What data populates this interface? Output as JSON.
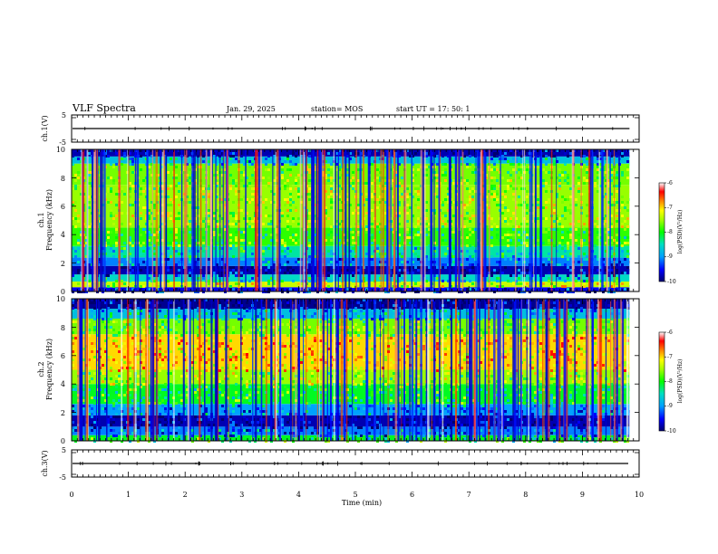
{
  "header": {
    "title": "VLF Spectra",
    "date": "Jan. 29, 2025",
    "station": "station= MOS",
    "start": "start  UT  =   17: 50: 1"
  },
  "chart_data": [
    {
      "type": "line",
      "panel": "ch1-waveform",
      "ylabel": "ch.1(V)",
      "yticks": [
        "5",
        "-5"
      ],
      "ylim": [
        -5,
        5
      ],
      "xlim": [
        0,
        10
      ],
      "end_time_min": 9.83,
      "note_level_v": 0
    },
    {
      "type": "heatmap",
      "panel": "ch1-spectrogram",
      "ylabel": [
        "ch.1",
        "Frequency (kHz)"
      ],
      "yticks": [
        "0",
        "2",
        "4",
        "6",
        "8",
        "10"
      ],
      "ylim": [
        0,
        10
      ],
      "xlim": [
        0,
        10
      ],
      "end_time_min": 9.83,
      "colorbar": {
        "label": "log(PSD)(V²/Hz)",
        "ticks": [
          "-6",
          "-7",
          "-8",
          "-9",
          "-10"
        ],
        "range": [
          -10,
          -6
        ]
      },
      "background_bands_khz": [
        {
          "from": 0,
          "to": 0.3,
          "level": -9.6
        },
        {
          "from": 0.3,
          "to": 0.7,
          "level": -7.6
        },
        {
          "from": 0.7,
          "to": 1.2,
          "level": -8.7
        },
        {
          "from": 1.2,
          "to": 1.8,
          "level": -9.8
        },
        {
          "from": 1.8,
          "to": 2.4,
          "level": -9.2
        },
        {
          "from": 2.4,
          "to": 3.2,
          "level": -8.6
        },
        {
          "from": 3.2,
          "to": 4.5,
          "level": -8.1
        },
        {
          "from": 4.5,
          "to": 7.5,
          "level": -7.8
        },
        {
          "from": 7.5,
          "to": 9.0,
          "level": -7.9
        },
        {
          "from": 9.0,
          "to": 9.5,
          "level": -8.9
        },
        {
          "from": 9.5,
          "to": 10.0,
          "level": -9.8
        }
      ]
    },
    {
      "type": "heatmap",
      "panel": "ch2-spectrogram",
      "ylabel": [
        "ch.2",
        "Frequency (kHz)"
      ],
      "yticks": [
        "0",
        "2",
        "4",
        "6",
        "8",
        "10"
      ],
      "ylim": [
        0,
        10
      ],
      "xlim": [
        0,
        10
      ],
      "end_time_min": 9.83,
      "colorbar": {
        "label": "log(PSD)(V²/Hz)",
        "ticks": [
          "-6",
          "-7",
          "-8",
          "-9",
          "-10"
        ],
        "range": [
          -10,
          -6
        ]
      },
      "background_bands_khz": [
        {
          "from": 0,
          "to": 0.4,
          "level": -8.3
        },
        {
          "from": 0.4,
          "to": 1.0,
          "level": -9.2
        },
        {
          "from": 1.0,
          "to": 1.8,
          "level": -9.8
        },
        {
          "from": 1.8,
          "to": 2.6,
          "level": -9.1
        },
        {
          "from": 2.6,
          "to": 4.0,
          "level": -8.3
        },
        {
          "from": 4.0,
          "to": 5.0,
          "level": -7.8
        },
        {
          "from": 5.0,
          "to": 7.5,
          "level": -7.2
        },
        {
          "from": 7.5,
          "to": 8.6,
          "level": -7.9
        },
        {
          "from": 8.6,
          "to": 9.3,
          "level": -8.9
        },
        {
          "from": 9.3,
          "to": 10.0,
          "level": -9.9
        }
      ]
    },
    {
      "type": "line",
      "panel": "ch3-waveform",
      "ylabel": "ch.3(V)",
      "yticks": [
        "5",
        "-5"
      ],
      "ylim": [
        -5,
        5
      ],
      "xlim": [
        0,
        10
      ],
      "end_time_min": 9.83,
      "note_level_v": 0
    }
  ],
  "xaxis": {
    "label": "Time (min)",
    "ticks": [
      "0",
      "1",
      "2",
      "3",
      "4",
      "5",
      "6",
      "7",
      "8",
      "9",
      "10"
    ]
  },
  "colors": {
    "colormap": [
      "#000070",
      "#0000ff",
      "#00a0ff",
      "#00e0c0",
      "#00ff00",
      "#a0ff00",
      "#ffff00",
      "#ff8000",
      "#ff0000",
      "#ffffff"
    ]
  }
}
